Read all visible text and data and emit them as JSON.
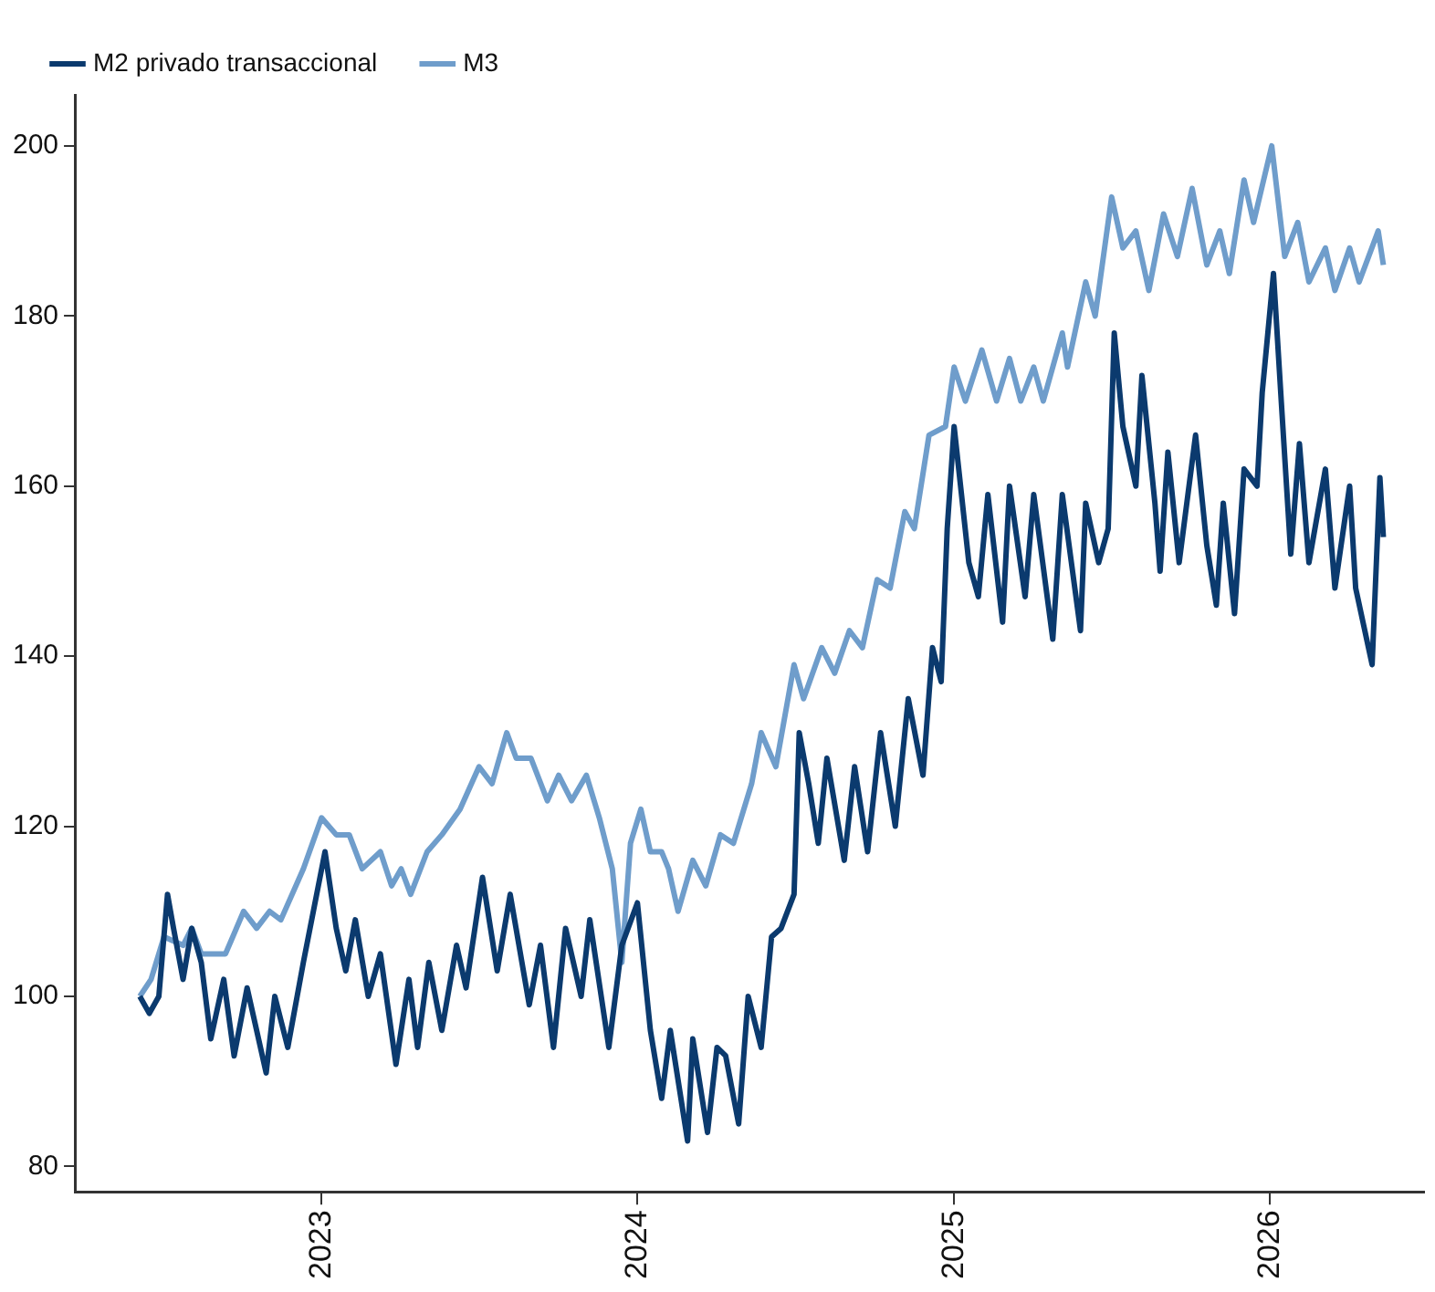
{
  "chart_data": {
    "type": "line",
    "x": [
      "2022-06-05",
      "2022-06-16",
      "2022-06-27",
      "2022-07-07",
      "2022-07-14",
      "2022-07-25",
      "2022-08-04",
      "2022-08-15",
      "2022-08-26",
      "2022-09-10",
      "2022-09-22",
      "2022-10-07",
      "2022-10-29",
      "2022-11-08",
      "2022-11-23",
      "2022-12-11",
      "2023-01-05",
      "2023-01-18",
      "2023-01-29",
      "2023-02-09",
      "2023-02-24",
      "2023-03-10",
      "2023-03-28",
      "2023-04-12",
      "2023-04-22",
      "2023-05-05",
      "2023-05-20",
      "2023-06-06",
      "2023-06-17",
      "2023-07-06",
      "2023-07-23",
      "2023-08-07",
      "2023-08-29",
      "2023-09-11",
      "2023-09-26",
      "2023-10-10",
      "2023-10-28",
      "2023-11-07",
      "2023-11-29",
      "2023-12-14",
      "2024-01-01",
      "2024-01-16",
      "2024-01-29",
      "2024-02-08",
      "2024-02-28",
      "2024-03-05",
      "2024-03-22",
      "2024-04-02",
      "2024-04-12",
      "2024-04-27",
      "2024-05-08",
      "2024-05-23",
      "2024-06-04",
      "2024-06-15",
      "2024-06-30",
      "2024-07-06",
      "2024-07-17",
      "2024-07-28",
      "2024-08-07",
      "2024-08-27",
      "2024-09-08",
      "2024-09-23",
      "2024-10-08",
      "2024-10-25",
      "2024-11-09",
      "2024-11-26",
      "2024-12-07",
      "2024-12-17",
      "2024-12-24",
      "2025-01-01",
      "2025-01-18",
      "2025-01-29",
      "2025-02-09",
      "2025-02-26",
      "2025-03-06",
      "2025-03-24",
      "2025-04-03",
      "2025-04-25",
      "2025-05-06",
      "2025-05-27",
      "2025-06-02",
      "2025-06-17",
      "2025-06-28",
      "2025-07-05",
      "2025-07-15",
      "2025-07-30",
      "2025-08-06",
      "2025-08-21",
      "2025-08-27",
      "2025-09-05",
      "2025-09-18",
      "2025-10-07",
      "2025-10-20",
      "2025-10-31",
      "2025-11-08",
      "2025-11-21",
      "2025-12-02",
      "2025-12-17",
      "2025-12-23",
      "2026-01-05",
      "2026-01-14",
      "2026-01-25",
      "2026-02-04",
      "2026-02-15",
      "2026-03-06",
      "2026-03-17",
      "2026-04-03",
      "2026-04-10",
      "2026-04-29",
      "2026-05-08",
      "2026-05-12"
    ],
    "series": [
      {
        "name": "M2 privado transaccional",
        "color": "#0b3a6e",
        "values": [
          100,
          98,
          100,
          112,
          108,
          102,
          108,
          104,
          95,
          102,
          93,
          101,
          91,
          100,
          94,
          104,
          117,
          108,
          103,
          109,
          100,
          105,
          92,
          102,
          94,
          104,
          96,
          106,
          101,
          114,
          103,
          112,
          99,
          106,
          94,
          108,
          100,
          109,
          94,
          106,
          111,
          96,
          88,
          96,
          83,
          95,
          84,
          94,
          93,
          85,
          100,
          94,
          107,
          108,
          112,
          131,
          125,
          118,
          128,
          116,
          127,
          117,
          131,
          120,
          135,
          126,
          141,
          137,
          155,
          167,
          151,
          147,
          159,
          144,
          160,
          147,
          159,
          142,
          159,
          143,
          158,
          151,
          155,
          178,
          167,
          160,
          173,
          158,
          150,
          164,
          151,
          166,
          153,
          146,
          158,
          145,
          162,
          160,
          171,
          185,
          170,
          152,
          165,
          151,
          162,
          148,
          160,
          148,
          139,
          161,
          154
        ]
      },
      {
        "name": "M3",
        "color": "#6f9dcb",
        "x": [
          "2022-06-05",
          "2022-06-18",
          "2022-07-03",
          "2022-07-25",
          "2022-08-04",
          "2022-08-15",
          "2022-09-12",
          "2022-10-03",
          "2022-10-18",
          "2022-11-02",
          "2022-11-15",
          "2022-12-11",
          "2023-01-01",
          "2023-01-18",
          "2023-02-02",
          "2023-02-17",
          "2023-03-10",
          "2023-03-23",
          "2023-04-03",
          "2023-04-14",
          "2023-05-03",
          "2023-05-20",
          "2023-06-10",
          "2023-07-02",
          "2023-07-17",
          "2023-08-03",
          "2023-08-14",
          "2023-08-31",
          "2023-09-19",
          "2023-10-02",
          "2023-10-17",
          "2023-11-03",
          "2023-11-18",
          "2023-12-03",
          "2023-12-14",
          "2023-12-24",
          "2024-01-05",
          "2024-01-16",
          "2024-01-29",
          "2024-02-06",
          "2024-02-17",
          "2024-03-05",
          "2024-03-20",
          "2024-04-06",
          "2024-04-21",
          "2024-05-12",
          "2024-05-23",
          "2024-06-09",
          "2024-06-30",
          "2024-07-11",
          "2024-08-01",
          "2024-08-16",
          "2024-09-02",
          "2024-09-17",
          "2024-10-04",
          "2024-10-19",
          "2024-11-05",
          "2024-11-16",
          "2024-12-03",
          "2024-12-22",
          "2025-01-01",
          "2025-01-14",
          "2025-02-02",
          "2025-02-19",
          "2025-03-06",
          "2025-03-19",
          "2025-04-03",
          "2025-04-14",
          "2025-05-06",
          "2025-05-12",
          "2025-06-02",
          "2025-06-13",
          "2025-07-02",
          "2025-07-15",
          "2025-07-30",
          "2025-08-14",
          "2025-08-31",
          "2025-09-16",
          "2025-10-03",
          "2025-10-20",
          "2025-11-04",
          "2025-11-15",
          "2025-12-02",
          "2025-12-13",
          "2026-01-03",
          "2026-01-18",
          "2026-02-02",
          "2026-02-15",
          "2026-03-06",
          "2026-03-17",
          "2026-04-03",
          "2026-04-14",
          "2026-05-06",
          "2026-05-12"
        ],
        "values": [
          100,
          102,
          107,
          106,
          108,
          105,
          105,
          110,
          108,
          110,
          109,
          115,
          121,
          119,
          119,
          115,
          117,
          113,
          115,
          112,
          117,
          119,
          122,
          127,
          125,
          131,
          128,
          128,
          123,
          126,
          123,
          126,
          121,
          115,
          104,
          118,
          122,
          117,
          117,
          115,
          110,
          116,
          113,
          119,
          118,
          125,
          131,
          127,
          139,
          135,
          141,
          138,
          143,
          141,
          149,
          148,
          157,
          155,
          166,
          167,
          174,
          170,
          176,
          170,
          175,
          170,
          174,
          170,
          178,
          174,
          184,
          180,
          194,
          188,
          190,
          183,
          192,
          187,
          195,
          186,
          190,
          185,
          196,
          191,
          200,
          187,
          191,
          184,
          188,
          183,
          188,
          184,
          190,
          186
        ]
      }
    ],
    "xlim": [
      "2022-03-22",
      "2026-06-28"
    ],
    "xticks": [
      "2023",
      "2024",
      "2025",
      "2026"
    ],
    "ylim": [
      77,
      206
    ],
    "yticks": [
      80,
      100,
      120,
      140,
      160,
      180,
      200
    ],
    "grid": false,
    "legend": "top left"
  }
}
